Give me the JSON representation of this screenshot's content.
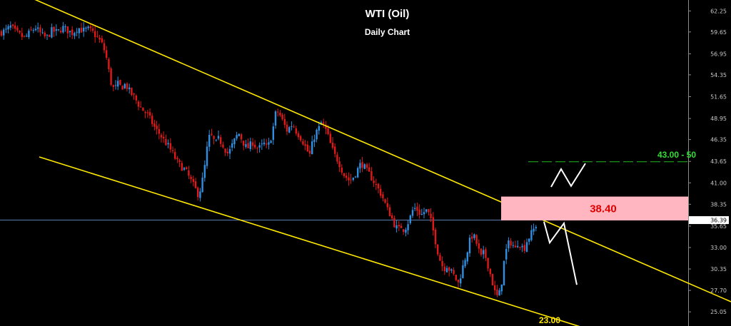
{
  "header": {
    "title": "WTI (Oil)",
    "subtitle": "Daily Chart"
  },
  "colors": {
    "background": "#000000",
    "bull": "#2f8fe0",
    "bear": "#e01818",
    "channel": "#ffe800",
    "zone_fill": "#ffb6c0",
    "zone_text": "#e00000",
    "target_line": "#22bb22",
    "projection": "#ffffff",
    "current_line": "#5a7ab0"
  },
  "chart_data": {
    "type": "candlestick",
    "title": "WTI (Oil)",
    "subtitle": "Daily Chart",
    "ylim": [
      23.3,
      63.6
    ],
    "y_ticks": [
      "62.25",
      "59.65",
      "56.95",
      "54.35",
      "51.65",
      "48.95",
      "46.35",
      "43.65",
      "41.00",
      "38.35",
      "35.65",
      "33.00",
      "30.35",
      "27.70",
      "25.05"
    ],
    "current_price": "36.39",
    "close_path": [
      [
        0,
        59.6
      ],
      [
        8,
        59.8
      ],
      [
        15,
        60.3
      ],
      [
        22,
        59.6
      ],
      [
        29,
        59.2
      ],
      [
        35,
        58.9
      ],
      [
        42,
        59.6
      ],
      [
        50,
        60.2
      ],
      [
        58,
        59.3
      ],
      [
        65,
        58.9
      ],
      [
        72,
        59.8
      ],
      [
        80,
        59.6
      ],
      [
        88,
        60.2
      ],
      [
        95,
        59.8
      ],
      [
        102,
        59.5
      ],
      [
        109,
        60.2
      ],
      [
        116,
        59.8
      ],
      [
        123,
        60.0
      ],
      [
        130,
        59.6
      ],
      [
        136,
        59.0
      ],
      [
        142,
        58.3
      ],
      [
        148,
        57.0
      ],
      [
        152,
        55.0
      ],
      [
        156,
        53.2
      ],
      [
        160,
        52.5
      ],
      [
        165,
        53.2
      ],
      [
        170,
        52.8
      ],
      [
        176,
        53.2
      ],
      [
        182,
        52.2
      ],
      [
        188,
        51.6
      ],
      [
        194,
        50.7
      ],
      [
        200,
        50.0
      ],
      [
        206,
        49.5
      ],
      [
        212,
        48.6
      ],
      [
        218,
        47.6
      ],
      [
        224,
        47.0
      ],
      [
        230,
        46.2
      ],
      [
        236,
        45.5
      ],
      [
        242,
        44.6
      ],
      [
        248,
        43.6
      ],
      [
        254,
        43.0
      ],
      [
        260,
        42.5
      ],
      [
        266,
        41.5
      ],
      [
        272,
        40.5
      ],
      [
        278,
        39.5
      ],
      [
        282,
        40.6
      ],
      [
        286,
        42.5
      ],
      [
        290,
        45.2
      ],
      [
        294,
        47.0
      ],
      [
        298,
        46.5
      ],
      [
        302,
        45.8
      ],
      [
        306,
        46.4
      ],
      [
        310,
        46.0
      ],
      [
        314,
        45.5
      ],
      [
        318,
        44.6
      ],
      [
        322,
        45.0
      ],
      [
        326,
        45.8
      ],
      [
        330,
        46.5
      ],
      [
        334,
        47.2
      ],
      [
        338,
        46.5
      ],
      [
        342,
        45.8
      ],
      [
        346,
        45.2
      ],
      [
        350,
        45.6
      ],
      [
        354,
        46.0
      ],
      [
        358,
        45.5
      ],
      [
        362,
        45.2
      ],
      [
        366,
        45.5
      ],
      [
        370,
        45.8
      ],
      [
        374,
        45.3
      ],
      [
        378,
        46.0
      ],
      [
        382,
        47.5
      ],
      [
        386,
        49.5
      ],
      [
        390,
        49.8
      ],
      [
        394,
        49.0
      ],
      [
        398,
        48.2
      ],
      [
        402,
        47.5
      ],
      [
        406,
        47.9
      ],
      [
        410,
        48.3
      ],
      [
        414,
        47.5
      ],
      [
        418,
        47.0
      ],
      [
        422,
        46.5
      ],
      [
        426,
        45.8
      ],
      [
        430,
        45.0
      ],
      [
        434,
        44.5
      ],
      [
        438,
        46.0
      ],
      [
        442,
        47.2
      ],
      [
        446,
        47.6
      ],
      [
        450,
        48.4
      ],
      [
        454,
        48.0
      ],
      [
        458,
        47.2
      ],
      [
        462,
        46.0
      ],
      [
        466,
        45.0
      ],
      [
        470,
        44.2
      ],
      [
        474,
        43.7
      ],
      [
        478,
        42.8
      ],
      [
        482,
        42.0
      ],
      [
        486,
        41.6
      ],
      [
        490,
        41.2
      ],
      [
        494,
        41.6
      ],
      [
        498,
        42.2
      ],
      [
        502,
        42.8
      ],
      [
        506,
        43.5
      ],
      [
        510,
        43.0
      ],
      [
        514,
        42.4
      ],
      [
        518,
        42.0
      ],
      [
        522,
        41.4
      ],
      [
        526,
        40.8
      ],
      [
        530,
        40.2
      ],
      [
        534,
        39.6
      ],
      [
        538,
        38.8
      ],
      [
        542,
        37.8
      ],
      [
        546,
        37.2
      ],
      [
        550,
        36.4
      ],
      [
        554,
        35.6
      ],
      [
        558,
        35.2
      ],
      [
        562,
        35.6
      ],
      [
        566,
        35.2
      ],
      [
        570,
        35.8
      ],
      [
        574,
        36.6
      ],
      [
        578,
        37.6
      ],
      [
        582,
        37.9
      ],
      [
        586,
        37.5
      ],
      [
        590,
        37.0
      ],
      [
        594,
        37.4
      ],
      [
        598,
        37.6
      ],
      [
        602,
        36.8
      ],
      [
        606,
        35.4
      ],
      [
        610,
        33.8
      ],
      [
        614,
        32.2
      ],
      [
        618,
        31.0
      ],
      [
        622,
        30.4
      ],
      [
        626,
        30.8
      ],
      [
        630,
        30.2
      ],
      [
        634,
        29.8
      ],
      [
        638,
        29.2
      ],
      [
        642,
        28.6
      ],
      [
        646,
        29.8
      ],
      [
        650,
        31.2
      ],
      [
        654,
        32.4
      ],
      [
        658,
        33.8
      ],
      [
        662,
        34.6
      ],
      [
        666,
        34.0
      ],
      [
        670,
        32.8
      ],
      [
        674,
        31.8
      ],
      [
        678,
        32.4
      ],
      [
        682,
        31.4
      ],
      [
        686,
        30.0
      ],
      [
        690,
        28.6
      ],
      [
        694,
        27.2
      ],
      [
        698,
        26.8
      ],
      [
        702,
        28.2
      ],
      [
        706,
        31.2
      ],
      [
        710,
        33.0
      ],
      [
        714,
        33.8
      ],
      [
        718,
        33.4
      ],
      [
        722,
        32.8
      ],
      [
        726,
        33.8
      ],
      [
        730,
        33.2
      ],
      [
        734,
        32.8
      ],
      [
        738,
        33.8
      ],
      [
        742,
        34.4
      ],
      [
        746,
        35.0
      ],
      [
        750,
        35.6
      ],
      [
        754,
        36.4
      ]
    ],
    "channel_lines": [
      {
        "from": [
          40,
          64.0
        ],
        "to": [
          1024,
          26.3
        ]
      },
      {
        "from": [
          55,
          44.2
        ],
        "to": [
          835,
          22.6
        ]
      }
    ],
    "resistance_zone": {
      "from": 36.35,
      "to": 39.3,
      "x_start": 702,
      "x_end": 964,
      "label": "38.40"
    },
    "target": {
      "label": "43.00 - 50",
      "value": 43.6,
      "x_start": 740,
      "x_end": 964
    },
    "support_label": {
      "label": "23.00",
      "value": 23.0,
      "x": 770
    },
    "projections": [
      [
        [
          772,
          40.5
        ],
        [
          786,
          42.7
        ],
        [
          800,
          40.6
        ],
        [
          820,
          43.4
        ]
      ],
      [
        [
          762,
          36.2
        ],
        [
          770,
          33.6
        ],
        [
          790,
          36.0
        ],
        [
          808,
          28.4
        ]
      ]
    ]
  }
}
